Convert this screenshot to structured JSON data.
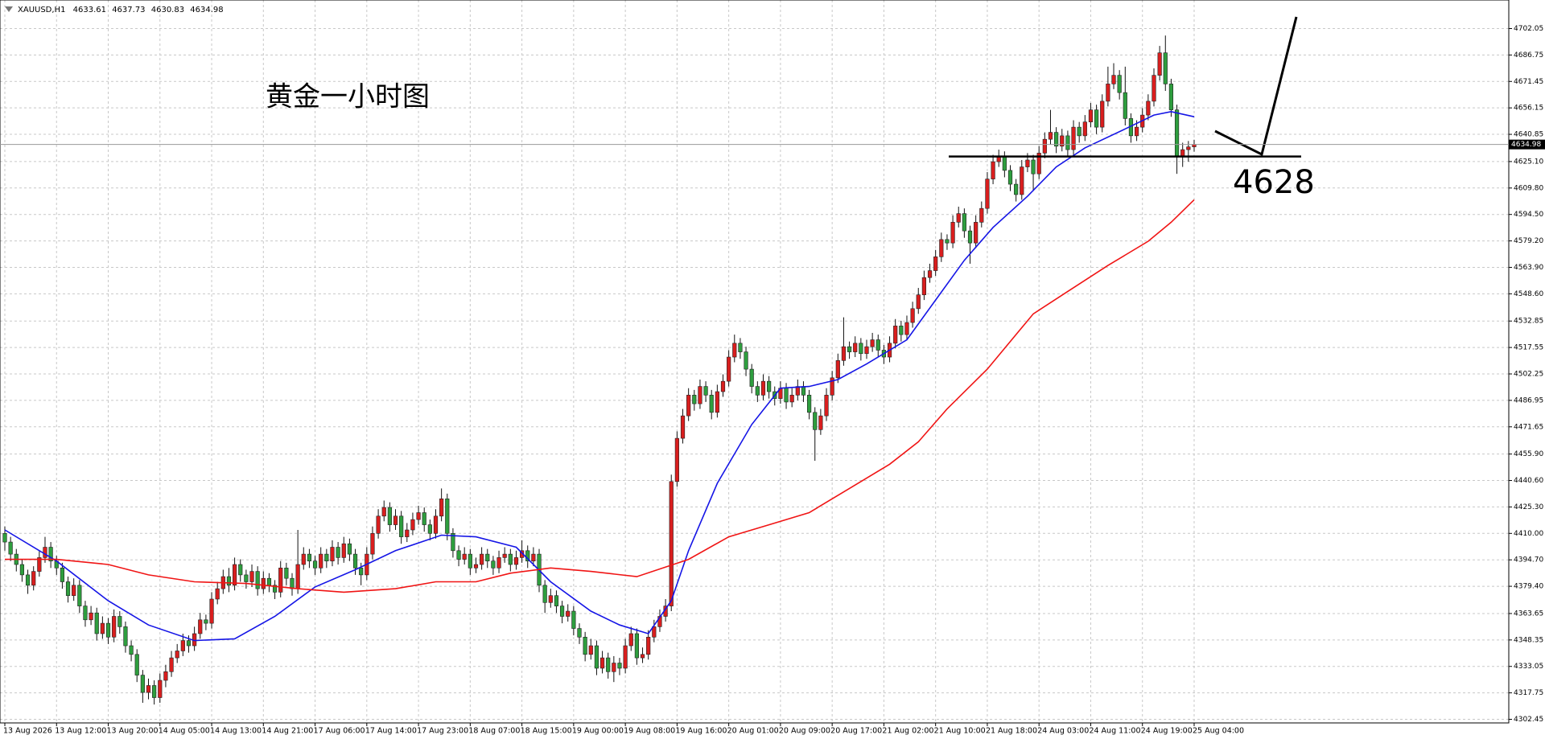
{
  "chart_data": {
    "type": "candlestick",
    "symbol": "XAUUSD,H1",
    "annotation": "黄金一小时图",
    "level": 4628,
    "up_color": "#d91e1e",
    "down_color": "#2e9e3e",
    "grid": true,
    "ylim": [
      4300.36,
      4718.56
    ],
    "yticks": [
      4702.05,
      4686.75,
      4671.45,
      4656.15,
      4640.85,
      {
        "value": 4625.1,
        "label": "4625.10"
      },
      {
        "value": 4609.8,
        "label": "4609.80"
      },
      {
        "value": 4594.5,
        "label": "4594.50"
      },
      {
        "value": 4579.2,
        "label": "4579.20"
      },
      {
        "value": 4563.9,
        "label": "4563.90"
      },
      {
        "value": 4548.6,
        "label": "4548.60"
      },
      4532.85,
      4517.55,
      4502.25,
      4486.95,
      4471.65,
      {
        "value": 4455.9,
        "label": "4455.90"
      },
      {
        "value": 4440.6,
        "label": "4440.60"
      },
      {
        "value": 4425.3,
        "label": "4425.30"
      },
      {
        "value": 4410,
        "label": "4410.00"
      },
      {
        "value": 4394.7,
        "label": "4394.70"
      },
      {
        "value": 4379.4,
        "label": "4379.40"
      },
      4363.65,
      4348.35,
      4333.05,
      4317.75,
      4302.45
    ],
    "categories": [
      "13 Aug 2026",
      "13 Aug 12:00",
      "13 Aug 20:00",
      "14 Aug 05:00",
      "14 Aug 13:00",
      "14 Aug 21:00",
      "17 Aug 06:00",
      "17 Aug 14:00",
      "17 Aug 23:00",
      "18 Aug 07:00",
      "18 Aug 15:00",
      "19 Aug 00:00",
      "19 Aug 08:00",
      "19 Aug 16:00",
      "20 Aug 01:00",
      "20 Aug 09:00",
      "20 Aug 17:00",
      "21 Aug 02:00",
      "21 Aug 10:00",
      "21 Aug 18:00",
      "24 Aug 03:00",
      "24 Aug 11:00",
      "24 Aug 19:00",
      "25 Aug 04:00"
    ],
    "ohlc": [
      [
        4410,
        4414,
        4400,
        4405
      ],
      [
        4405,
        4408,
        4394,
        4398
      ],
      [
        4398,
        4401,
        4388,
        4392
      ],
      [
        4392,
        4395,
        4382,
        4386
      ],
      [
        4386,
        4389,
        4375,
        4380
      ],
      [
        4380,
        4391,
        4377,
        4388
      ],
      [
        4388,
        4400,
        4385,
        4396
      ],
      [
        4396,
        4408,
        4393,
        4402
      ],
      [
        4402,
        4405,
        4390,
        4394
      ],
      [
        4394,
        4397,
        4386,
        4390
      ],
      [
        4390,
        4393,
        4378,
        4382
      ],
      [
        4382,
        4385,
        4370,
        4374
      ],
      [
        4374,
        4384,
        4371,
        4380
      ],
      [
        4380,
        4383,
        4364,
        4368
      ],
      [
        4368,
        4371,
        4356,
        4360
      ],
      [
        4360,
        4368,
        4357,
        4364
      ],
      [
        4364,
        4367,
        4348,
        4352
      ],
      [
        4352,
        4362,
        4349,
        4358
      ],
      [
        4358,
        4361,
        4346,
        4350
      ],
      [
        4350,
        4366,
        4347,
        4362
      ],
      [
        4362,
        4365,
        4352,
        4356
      ],
      [
        4356,
        4359,
        4341,
        4345
      ],
      [
        4345,
        4348,
        4336,
        4340
      ],
      [
        4340,
        4343,
        4324,
        4328
      ],
      [
        4328,
        4331,
        4312,
        4318
      ],
      [
        4318,
        4326,
        4314,
        4322
      ],
      [
        4322,
        4325,
        4311,
        4315
      ],
      [
        4315,
        4329,
        4312,
        4325
      ],
      [
        4325,
        4334,
        4321,
        4330
      ],
      [
        4330,
        4342,
        4327,
        4338
      ],
      [
        4338,
        4346,
        4335,
        4342
      ],
      [
        4342,
        4352,
        4339,
        4348
      ],
      [
        4348,
        4351,
        4341,
        4345
      ],
      [
        4345,
        4356,
        4342,
        4352
      ],
      [
        4352,
        4364,
        4349,
        4360
      ],
      [
        4360,
        4363,
        4354,
        4358
      ],
      [
        4358,
        4376,
        4355,
        4372
      ],
      [
        4372,
        4382,
        4369,
        4378
      ],
      [
        4378,
        4389,
        4375,
        4385
      ],
      [
        4385,
        4390,
        4376,
        4380
      ],
      [
        4380,
        4396,
        4377,
        4392
      ],
      [
        4392,
        4395,
        4382,
        4386
      ],
      [
        4386,
        4389,
        4378,
        4382
      ],
      [
        4382,
        4392,
        4379,
        4388
      ],
      [
        4388,
        4391,
        4374,
        4378
      ],
      [
        4378,
        4388,
        4375,
        4384
      ],
      [
        4384,
        4387,
        4376,
        4380
      ],
      [
        4380,
        4383,
        4372,
        4376
      ],
      [
        4376,
        4394,
        4373,
        4390
      ],
      [
        4390,
        4393,
        4380,
        4384
      ],
      [
        4384,
        4387,
        4374,
        4378
      ],
      [
        4378,
        4412,
        4375,
        4392
      ],
      [
        4392,
        4402,
        4389,
        4398
      ],
      [
        4398,
        4401,
        4390,
        4394
      ],
      [
        4394,
        4397,
        4386,
        4390
      ],
      [
        4390,
        4402,
        4387,
        4398
      ],
      [
        4398,
        4401,
        4390,
        4394
      ],
      [
        4394,
        4406,
        4391,
        4402
      ],
      [
        4402,
        4405,
        4392,
        4396
      ],
      [
        4396,
        4408,
        4393,
        4404
      ],
      [
        4404,
        4407,
        4394,
        4398
      ],
      [
        4398,
        4401,
        4386,
        4390
      ],
      [
        4390,
        4393,
        4380,
        4386
      ],
      [
        4386,
        4402,
        4383,
        4398
      ],
      [
        4398,
        4414,
        4395,
        4410
      ],
      [
        4410,
        4424,
        4407,
        4420
      ],
      [
        4420,
        4429,
        4417,
        4425
      ],
      [
        4425,
        4428,
        4411,
        4415
      ],
      [
        4415,
        4424,
        4412,
        4420
      ],
      [
        4420,
        4423,
        4404,
        4408
      ],
      [
        4408,
        4416,
        4405,
        4412
      ],
      [
        4412,
        4422,
        4409,
        4418
      ],
      [
        4418,
        4426,
        4415,
        4422
      ],
      [
        4422,
        4425,
        4411,
        4415
      ],
      [
        4415,
        4418,
        4406,
        4410
      ],
      [
        4410,
        4424,
        4407,
        4420
      ],
      [
        4420,
        4436,
        4417,
        4430
      ],
      [
        4430,
        4433,
        4406,
        4410
      ],
      [
        4410,
        4413,
        4396,
        4400
      ],
      [
        4400,
        4403,
        4391,
        4395
      ],
      [
        4395,
        4402,
        4392,
        4398
      ],
      [
        4398,
        4401,
        4386,
        4390
      ],
      [
        4390,
        4396,
        4387,
        4392
      ],
      [
        4392,
        4402,
        4389,
        4398
      ],
      [
        4398,
        4401,
        4390,
        4394
      ],
      [
        4394,
        4397,
        4386,
        4390
      ],
      [
        4390,
        4400,
        4387,
        4396
      ],
      [
        4396,
        4402,
        4393,
        4398
      ],
      [
        4398,
        4401,
        4388,
        4392
      ],
      [
        4392,
        4400,
        4389,
        4396
      ],
      [
        4396,
        4406,
        4393,
        4400
      ],
      [
        4400,
        4403,
        4390,
        4394
      ],
      [
        4394,
        4402,
        4391,
        4398
      ],
      [
        4398,
        4401,
        4376,
        4380
      ],
      [
        4380,
        4383,
        4364,
        4370
      ],
      [
        4370,
        4378,
        4367,
        4374
      ],
      [
        4374,
        4377,
        4364,
        4368
      ],
      [
        4368,
        4371,
        4358,
        4362
      ],
      [
        4362,
        4369,
        4359,
        4365
      ],
      [
        4365,
        4368,
        4351,
        4355
      ],
      [
        4355,
        4358,
        4346,
        4350
      ],
      [
        4350,
        4353,
        4336,
        4340
      ],
      [
        4340,
        4349,
        4337,
        4345
      ],
      [
        4345,
        4348,
        4328,
        4332
      ],
      [
        4332,
        4342,
        4329,
        4338
      ],
      [
        4338,
        4341,
        4326,
        4330
      ],
      [
        4330,
        4339,
        4324,
        4335
      ],
      [
        4335,
        4338,
        4328,
        4332
      ],
      [
        4332,
        4349,
        4329,
        4345
      ],
      [
        4345,
        4356,
        4342,
        4352
      ],
      [
        4352,
        4355,
        4334,
        4338
      ],
      [
        4338,
        4344,
        4335,
        4340
      ],
      [
        4340,
        4354,
        4337,
        4350
      ],
      [
        4350,
        4360,
        4347,
        4356
      ],
      [
        4356,
        4366,
        4353,
        4362
      ],
      [
        4362,
        4372,
        4359,
        4368
      ],
      [
        4368,
        4444,
        4365,
        4440
      ],
      [
        4440,
        4469,
        4437,
        4465
      ],
      [
        4465,
        4482,
        4462,
        4478
      ],
      [
        4478,
        4494,
        4475,
        4490
      ],
      [
        4490,
        4493,
        4481,
        4485
      ],
      [
        4485,
        4499,
        4482,
        4495
      ],
      [
        4495,
        4498,
        4486,
        4490
      ],
      [
        4490,
        4493,
        4476,
        4480
      ],
      [
        4480,
        4496,
        4477,
        4492
      ],
      [
        4492,
        4502,
        4489,
        4498
      ],
      [
        4498,
        4516,
        4495,
        4512
      ],
      [
        4512,
        4525,
        4509,
        4520
      ],
      [
        4520,
        4523,
        4511,
        4515
      ],
      [
        4515,
        4518,
        4501,
        4505
      ],
      [
        4505,
        4508,
        4491,
        4495
      ],
      [
        4495,
        4498,
        4486,
        4490
      ],
      [
        4490,
        4502,
        4487,
        4498
      ],
      [
        4498,
        4501,
        4488,
        4492
      ],
      [
        4492,
        4495,
        4484,
        4488
      ],
      [
        4488,
        4498,
        4485,
        4494
      ],
      [
        4494,
        4497,
        4482,
        4486
      ],
      [
        4486,
        4494,
        4483,
        4490
      ],
      [
        4490,
        4499,
        4487,
        4495
      ],
      [
        4495,
        4498,
        4486,
        4490
      ],
      [
        4490,
        4493,
        4476,
        4480
      ],
      [
        4480,
        4483,
        4452,
        4470
      ],
      [
        4470,
        4482,
        4467,
        4478
      ],
      [
        4478,
        4494,
        4475,
        4490
      ],
      [
        4490,
        4504,
        4487,
        4500
      ],
      [
        4500,
        4514,
        4497,
        4510
      ],
      [
        4510,
        4535,
        4507,
        4518
      ],
      [
        4518,
        4521,
        4511,
        4515
      ],
      [
        4515,
        4524,
        4512,
        4520
      ],
      [
        4520,
        4523,
        4510,
        4514
      ],
      [
        4514,
        4522,
        4511,
        4518
      ],
      [
        4518,
        4526,
        4515,
        4522
      ],
      [
        4522,
        4525,
        4512,
        4516
      ],
      [
        4516,
        4519,
        4508,
        4512
      ],
      [
        4512,
        4524,
        4509,
        4520
      ],
      [
        4520,
        4534,
        4517,
        4530
      ],
      [
        4530,
        4533,
        4521,
        4525
      ],
      [
        4525,
        4536,
        4522,
        4532
      ],
      [
        4532,
        4544,
        4529,
        4540
      ],
      [
        4540,
        4552,
        4537,
        4548
      ],
      [
        4548,
        4562,
        4545,
        4558
      ],
      [
        4558,
        4566,
        4555,
        4562
      ],
      [
        4562,
        4574,
        4559,
        4570
      ],
      [
        4570,
        4584,
        4567,
        4580
      ],
      [
        4580,
        4583,
        4574,
        4578
      ],
      [
        4578,
        4594,
        4575,
        4590
      ],
      [
        4590,
        4599,
        4587,
        4595
      ],
      [
        4595,
        4598,
        4581,
        4585
      ],
      [
        4585,
        4588,
        4566,
        4578
      ],
      [
        4578,
        4594,
        4575,
        4590
      ],
      [
        4590,
        4602,
        4587,
        4598
      ],
      [
        4598,
        4619,
        4595,
        4615
      ],
      [
        4615,
        4629,
        4612,
        4625
      ],
      [
        4625,
        4632,
        4622,
        4628
      ],
      [
        4628,
        4631,
        4616,
        4620
      ],
      [
        4620,
        4623,
        4608,
        4612
      ],
      [
        4612,
        4615,
        4602,
        4606
      ],
      [
        4606,
        4626,
        4603,
        4622
      ],
      [
        4622,
        4630,
        4619,
        4626
      ],
      [
        4626,
        4629,
        4608,
        4618
      ],
      [
        4618,
        4634,
        4615,
        4630
      ],
      [
        4630,
        4642,
        4627,
        4638
      ],
      [
        4638,
        4655,
        4635,
        4642
      ],
      [
        4642,
        4645,
        4630,
        4634
      ],
      [
        4634,
        4644,
        4631,
        4640
      ],
      [
        4640,
        4643,
        4628,
        4632
      ],
      [
        4632,
        4649,
        4629,
        4645
      ],
      [
        4645,
        4648,
        4636,
        4640
      ],
      [
        4640,
        4652,
        4637,
        4648
      ],
      [
        4648,
        4659,
        4645,
        4655
      ],
      [
        4655,
        4658,
        4641,
        4645
      ],
      [
        4645,
        4664,
        4642,
        4660
      ],
      [
        4660,
        4680,
        4657,
        4670
      ],
      [
        4670,
        4682,
        4667,
        4675
      ],
      [
        4675,
        4678,
        4661,
        4665
      ],
      [
        4665,
        4680,
        4646,
        4650
      ],
      [
        4650,
        4653,
        4636,
        4640
      ],
      [
        4640,
        4649,
        4637,
        4645
      ],
      [
        4645,
        4656,
        4642,
        4652
      ],
      [
        4652,
        4664,
        4649,
        4660
      ],
      [
        4660,
        4679,
        4657,
        4675
      ],
      [
        4675,
        4692,
        4672,
        4688
      ],
      [
        4688,
        4698,
        4666,
        4670
      ],
      [
        4670,
        4673,
        4651,
        4655
      ],
      [
        4655,
        4658,
        4618,
        4628
      ],
      [
        4628,
        4636,
        4622,
        4632
      ],
      [
        4632,
        4637,
        4625,
        4633.61
      ],
      [
        4633.61,
        4637.73,
        4630.83,
        4634.98
      ]
    ],
    "series": [
      {
        "color": "#1515e6",
        "x": [
          0,
          9,
          18,
          25,
          33,
          40,
          47,
          54,
          61,
          68,
          76,
          82,
          89,
          95,
          102,
          107,
          112,
          116,
          119,
          124,
          130,
          135,
          140,
          145,
          150,
          157,
          162,
          167,
          172,
          178,
          183,
          188,
          195,
          200,
          203,
          207
        ],
        "values": [
          4412,
          4394,
          4371,
          4357,
          4348,
          4349,
          4362,
          4379,
          4389,
          4400,
          4409,
          4408,
          4402,
          4382,
          4365,
          4357,
          4352,
          4371,
          4400,
          4439,
          4473,
          4494,
          4495,
          4499,
          4508,
          4522,
          4545,
          4568,
          4587,
          4605,
          4622,
          4633,
          4644,
          4652,
          4654,
          4651
        ]
      },
      {
        "color": "#f01414",
        "x": [
          0,
          9,
          18,
          25,
          33,
          42,
          51,
          59,
          68,
          75,
          82,
          88,
          95,
          102,
          110,
          119,
          126,
          133,
          140,
          147,
          154,
          159,
          164,
          171,
          179,
          185,
          192,
          199,
          203,
          207
        ],
        "values": [
          4395,
          4395,
          4392,
          4386,
          4382,
          4381,
          4378,
          4376,
          4378,
          4382,
          4382,
          4387,
          4390,
          4388,
          4385,
          4395,
          4408,
          4415,
          4422,
          4436,
          4450,
          4463,
          4482,
          4505,
          4537,
          4550,
          4565,
          4579,
          4590,
          4603
        ]
      }
    ]
  }
}
